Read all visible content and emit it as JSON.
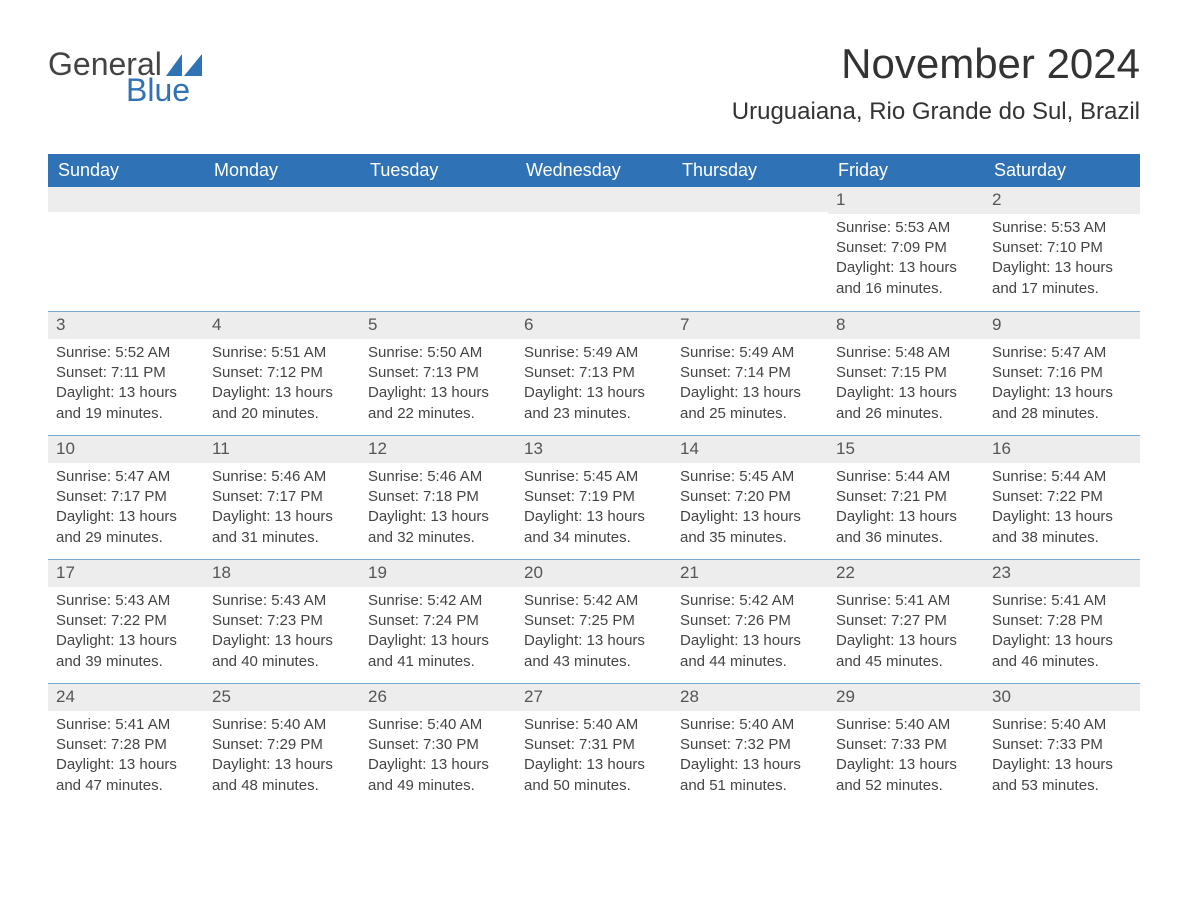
{
  "brand": {
    "part1": "General",
    "part2": "Blue",
    "logo_color": "#2f72b6"
  },
  "title": "November 2024",
  "location": "Uruguaiana, Rio Grande do Sul, Brazil",
  "colors": {
    "header_bg": "#2f72b6",
    "header_fg": "#ffffff",
    "daynum_bg": "#ededed",
    "text": "#444444",
    "rule": "#7aa6d4"
  },
  "weekdays": [
    "Sunday",
    "Monday",
    "Tuesday",
    "Wednesday",
    "Thursday",
    "Friday",
    "Saturday"
  ],
  "weeks": [
    [
      null,
      null,
      null,
      null,
      null,
      {
        "day": "1",
        "sunrise": "Sunrise: 5:53 AM",
        "sunset": "Sunset: 7:09 PM",
        "daylight": "Daylight: 13 hours and 16 minutes."
      },
      {
        "day": "2",
        "sunrise": "Sunrise: 5:53 AM",
        "sunset": "Sunset: 7:10 PM",
        "daylight": "Daylight: 13 hours and 17 minutes."
      }
    ],
    [
      {
        "day": "3",
        "sunrise": "Sunrise: 5:52 AM",
        "sunset": "Sunset: 7:11 PM",
        "daylight": "Daylight: 13 hours and 19 minutes."
      },
      {
        "day": "4",
        "sunrise": "Sunrise: 5:51 AM",
        "sunset": "Sunset: 7:12 PM",
        "daylight": "Daylight: 13 hours and 20 minutes."
      },
      {
        "day": "5",
        "sunrise": "Sunrise: 5:50 AM",
        "sunset": "Sunset: 7:13 PM",
        "daylight": "Daylight: 13 hours and 22 minutes."
      },
      {
        "day": "6",
        "sunrise": "Sunrise: 5:49 AM",
        "sunset": "Sunset: 7:13 PM",
        "daylight": "Daylight: 13 hours and 23 minutes."
      },
      {
        "day": "7",
        "sunrise": "Sunrise: 5:49 AM",
        "sunset": "Sunset: 7:14 PM",
        "daylight": "Daylight: 13 hours and 25 minutes."
      },
      {
        "day": "8",
        "sunrise": "Sunrise: 5:48 AM",
        "sunset": "Sunset: 7:15 PM",
        "daylight": "Daylight: 13 hours and 26 minutes."
      },
      {
        "day": "9",
        "sunrise": "Sunrise: 5:47 AM",
        "sunset": "Sunset: 7:16 PM",
        "daylight": "Daylight: 13 hours and 28 minutes."
      }
    ],
    [
      {
        "day": "10",
        "sunrise": "Sunrise: 5:47 AM",
        "sunset": "Sunset: 7:17 PM",
        "daylight": "Daylight: 13 hours and 29 minutes."
      },
      {
        "day": "11",
        "sunrise": "Sunrise: 5:46 AM",
        "sunset": "Sunset: 7:17 PM",
        "daylight": "Daylight: 13 hours and 31 minutes."
      },
      {
        "day": "12",
        "sunrise": "Sunrise: 5:46 AM",
        "sunset": "Sunset: 7:18 PM",
        "daylight": "Daylight: 13 hours and 32 minutes."
      },
      {
        "day": "13",
        "sunrise": "Sunrise: 5:45 AM",
        "sunset": "Sunset: 7:19 PM",
        "daylight": "Daylight: 13 hours and 34 minutes."
      },
      {
        "day": "14",
        "sunrise": "Sunrise: 5:45 AM",
        "sunset": "Sunset: 7:20 PM",
        "daylight": "Daylight: 13 hours and 35 minutes."
      },
      {
        "day": "15",
        "sunrise": "Sunrise: 5:44 AM",
        "sunset": "Sunset: 7:21 PM",
        "daylight": "Daylight: 13 hours and 36 minutes."
      },
      {
        "day": "16",
        "sunrise": "Sunrise: 5:44 AM",
        "sunset": "Sunset: 7:22 PM",
        "daylight": "Daylight: 13 hours and 38 minutes."
      }
    ],
    [
      {
        "day": "17",
        "sunrise": "Sunrise: 5:43 AM",
        "sunset": "Sunset: 7:22 PM",
        "daylight": "Daylight: 13 hours and 39 minutes."
      },
      {
        "day": "18",
        "sunrise": "Sunrise: 5:43 AM",
        "sunset": "Sunset: 7:23 PM",
        "daylight": "Daylight: 13 hours and 40 minutes."
      },
      {
        "day": "19",
        "sunrise": "Sunrise: 5:42 AM",
        "sunset": "Sunset: 7:24 PM",
        "daylight": "Daylight: 13 hours and 41 minutes."
      },
      {
        "day": "20",
        "sunrise": "Sunrise: 5:42 AM",
        "sunset": "Sunset: 7:25 PM",
        "daylight": "Daylight: 13 hours and 43 minutes."
      },
      {
        "day": "21",
        "sunrise": "Sunrise: 5:42 AM",
        "sunset": "Sunset: 7:26 PM",
        "daylight": "Daylight: 13 hours and 44 minutes."
      },
      {
        "day": "22",
        "sunrise": "Sunrise: 5:41 AM",
        "sunset": "Sunset: 7:27 PM",
        "daylight": "Daylight: 13 hours and 45 minutes."
      },
      {
        "day": "23",
        "sunrise": "Sunrise: 5:41 AM",
        "sunset": "Sunset: 7:28 PM",
        "daylight": "Daylight: 13 hours and 46 minutes."
      }
    ],
    [
      {
        "day": "24",
        "sunrise": "Sunrise: 5:41 AM",
        "sunset": "Sunset: 7:28 PM",
        "daylight": "Daylight: 13 hours and 47 minutes."
      },
      {
        "day": "25",
        "sunrise": "Sunrise: 5:40 AM",
        "sunset": "Sunset: 7:29 PM",
        "daylight": "Daylight: 13 hours and 48 minutes."
      },
      {
        "day": "26",
        "sunrise": "Sunrise: 5:40 AM",
        "sunset": "Sunset: 7:30 PM",
        "daylight": "Daylight: 13 hours and 49 minutes."
      },
      {
        "day": "27",
        "sunrise": "Sunrise: 5:40 AM",
        "sunset": "Sunset: 7:31 PM",
        "daylight": "Daylight: 13 hours and 50 minutes."
      },
      {
        "day": "28",
        "sunrise": "Sunrise: 5:40 AM",
        "sunset": "Sunset: 7:32 PM",
        "daylight": "Daylight: 13 hours and 51 minutes."
      },
      {
        "day": "29",
        "sunrise": "Sunrise: 5:40 AM",
        "sunset": "Sunset: 7:33 PM",
        "daylight": "Daylight: 13 hours and 52 minutes."
      },
      {
        "day": "30",
        "sunrise": "Sunrise: 5:40 AM",
        "sunset": "Sunset: 7:33 PM",
        "daylight": "Daylight: 13 hours and 53 minutes."
      }
    ]
  ]
}
